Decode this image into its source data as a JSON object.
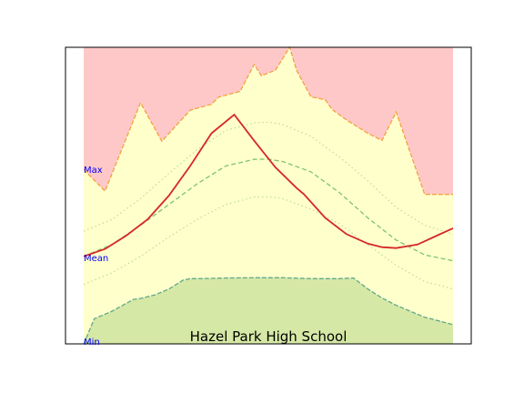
{
  "chart_data": {
    "type": "area",
    "title": "Hazel Park High School",
    "xlabel": "",
    "ylabel": "",
    "grid": false,
    "legend": "none",
    "x_range": [
      0,
      52
    ],
    "y_range": [
      0,
      100
    ],
    "axis_labels": {
      "max": "Max",
      "mean": "Mean",
      "min": "Min"
    },
    "colors": {
      "max_fill": "#ffc8c8",
      "band_fill": "#ffffcc",
      "min_fill": "#d6e8a6",
      "max_edge": "#f4a142",
      "min_edge": "#5fa98a",
      "mean_line": "#7dc36a",
      "band_dotted": "#b9d98a",
      "current_line": "#d62728"
    },
    "series": [
      {
        "role": "max-boundary",
        "x": [
          0,
          3,
          8,
          11,
          15,
          18,
          19,
          21,
          22,
          24,
          25,
          27,
          29,
          30,
          32,
          34,
          35,
          37,
          40,
          42,
          44,
          48,
          52
        ],
        "values": [
          58.8,
          51.5,
          81.3,
          68.3,
          78.8,
          80.8,
          83.2,
          84.5,
          85.1,
          94.2,
          90.4,
          92.3,
          100,
          92.1,
          83.3,
          82.3,
          79.0,
          75.5,
          71.0,
          68.6,
          78.2,
          50.4,
          50.4
        ]
      },
      {
        "role": "min-boundary",
        "x": [
          0,
          1.5,
          4,
          7,
          8,
          10,
          12,
          14,
          15,
          16,
          20,
          24,
          28,
          32,
          36,
          38,
          40,
          42,
          44,
          48,
          52
        ],
        "values": [
          0,
          8.5,
          11.0,
          15.0,
          15.3,
          16.5,
          18.5,
          21.5,
          22.0,
          22.0,
          22.2,
          22.3,
          22.3,
          22.0,
          22.0,
          22.2,
          18.5,
          15.5,
          13.0,
          9.0,
          6.5
        ]
      },
      {
        "role": "mean",
        "x": [
          0,
          4,
          8,
          12,
          16,
          20,
          24,
          26,
          28,
          32,
          36,
          40,
          44,
          48,
          52
        ],
        "values": [
          29.5,
          33.5,
          40.0,
          47.0,
          54.0,
          60.0,
          62.2,
          62.3,
          61.5,
          58.0,
          51.0,
          42.5,
          35.0,
          30.0,
          28.0
        ]
      },
      {
        "role": "band-upper",
        "x": [
          0,
          4,
          8,
          12,
          16,
          20,
          24,
          26,
          28,
          32,
          36,
          40,
          44,
          48,
          52
        ],
        "values": [
          38.0,
          42.0,
          49.0,
          57.5,
          65.5,
          72.0,
          74.5,
          74.8,
          74.0,
          70.0,
          63.0,
          55.0,
          46.0,
          40.0,
          37.0
        ]
      },
      {
        "role": "band-lower",
        "x": [
          0,
          4,
          8,
          12,
          16,
          20,
          24,
          26,
          28,
          32,
          36,
          40,
          44,
          48,
          52
        ],
        "values": [
          20.0,
          24.0,
          29.5,
          36.0,
          42.0,
          47.0,
          49.5,
          49.6,
          49.0,
          45.5,
          40.5,
          33.5,
          26.5,
          21.0,
          18.5
        ]
      },
      {
        "role": "current",
        "x": [
          0,
          3,
          6,
          9,
          12,
          15,
          18,
          21.2,
          24,
          27,
          30,
          31,
          34,
          37,
          40,
          42,
          44,
          47,
          50,
          52
        ],
        "values": [
          29.5,
          32.0,
          36.5,
          42.0,
          50.0,
          60.0,
          71.0,
          77.3,
          68.5,
          59.5,
          52.5,
          50.5,
          42.5,
          37.0,
          33.8,
          32.6,
          32.3,
          33.5,
          36.8,
          39.0
        ]
      }
    ]
  }
}
